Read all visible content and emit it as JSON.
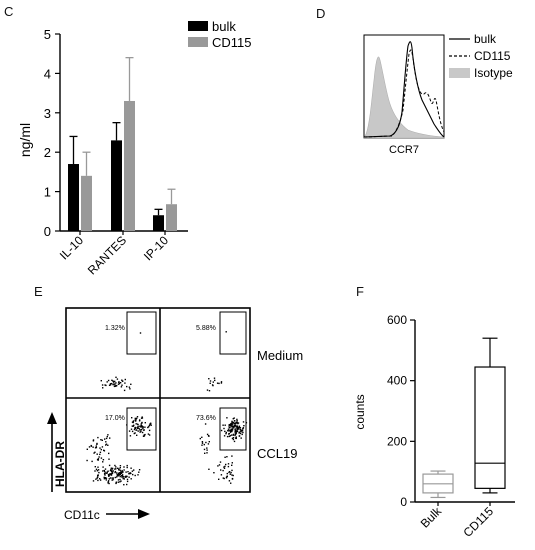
{
  "panels": {
    "C": {
      "letter": "C"
    },
    "D": {
      "letter": "D"
    },
    "E": {
      "letter": "E"
    },
    "F": {
      "letter": "F"
    }
  },
  "colors": {
    "bulk": "#000000",
    "cd115": "#999999",
    "isotype": "#c8c8c8",
    "axis": "#000000"
  },
  "chart_data": [
    {
      "id": "C",
      "type": "bar",
      "ylabel": "ng/ml",
      "ylim": [
        0,
        5
      ],
      "yticks": [
        0,
        1,
        2,
        3,
        4,
        5
      ],
      "categories": [
        "IL-10",
        "RANTES",
        "IP-10"
      ],
      "series": [
        {
          "name": "bulk",
          "color": "#000000",
          "values": [
            1.7,
            2.3,
            0.4
          ],
          "errors": [
            0.7,
            0.45,
            0.15
          ]
        },
        {
          "name": "CD115",
          "color": "#999999",
          "values": [
            1.4,
            3.3,
            0.68
          ],
          "errors": [
            0.6,
            1.1,
            0.38
          ]
        }
      ],
      "legend": "top-right",
      "grid": false
    },
    {
      "id": "D",
      "type": "area",
      "xlabel": "CCR7",
      "series": [
        {
          "name": "bulk",
          "style": "solid"
        },
        {
          "name": "CD115",
          "style": "dashed"
        },
        {
          "name": "Isotype",
          "style": "filled"
        }
      ],
      "legend": "right"
    },
    {
      "id": "E",
      "type": "scatter",
      "xlabel": "CD11c",
      "ylabel": "HLA-DR",
      "row_labels": [
        "Medium",
        "CCL19"
      ],
      "gate_percentages": [
        {
          "row": "Medium",
          "col": 1,
          "value": "1.32%"
        },
        {
          "row": "Medium",
          "col": 2,
          "value": "5.88%"
        },
        {
          "row": "CCL19",
          "col": 1,
          "value": "17.0%"
        },
        {
          "row": "CCL19",
          "col": 2,
          "value": "73.6%"
        }
      ]
    },
    {
      "id": "F",
      "type": "box",
      "ylabel": "counts",
      "ylim": [
        0,
        600
      ],
      "yticks": [
        0,
        200,
        400,
        600
      ],
      "categories": [
        "Bulk",
        "CD115"
      ],
      "boxes": [
        {
          "name": "Bulk",
          "color": "#999999",
          "min": 15,
          "q1": 30,
          "median": 60,
          "q3": 92,
          "max": 102
        },
        {
          "name": "CD115",
          "color": "#000000",
          "min": 30,
          "q1": 45,
          "median": 128,
          "q3": 445,
          "max": 540
        }
      ],
      "grid": false
    }
  ]
}
